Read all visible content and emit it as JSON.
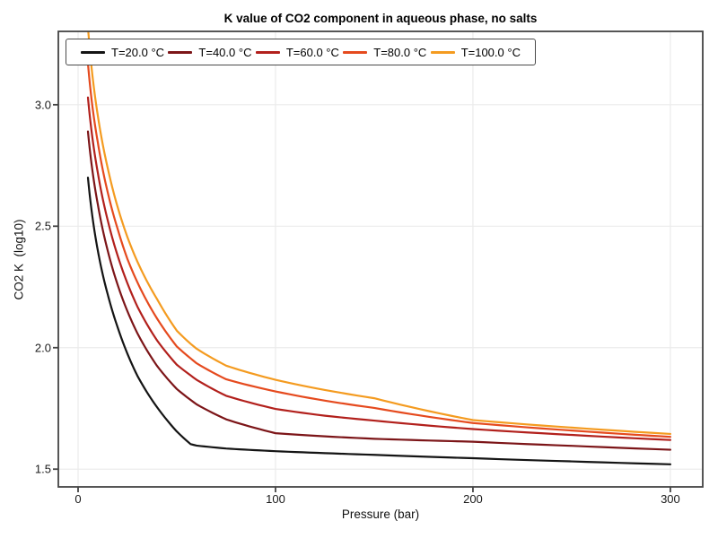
{
  "figure": {
    "title": "K value of CO2 component in aqueous phase, no salts",
    "xlabel": "Pressure (bar)",
    "ylabel": "CO2 K  (log10)"
  },
  "colors": {
    "background": "#ffffff",
    "spine": "#444444",
    "grid": "#ebebeb",
    "tick_text": "#1a1a1a"
  },
  "chart_data": {
    "type": "line",
    "title": "K value of CO2 component in aqueous phase, no salts",
    "xlabel": "Pressure (bar)",
    "ylabel": "CO2 K  (log10)",
    "xlim": [
      -10,
      316.4
    ],
    "ylim": [
      1.427,
      3.302
    ],
    "grid": true,
    "legend_position": "top-inside-horizontal",
    "xticks": [
      0,
      100,
      200,
      300
    ],
    "xtick_labels": [
      "0",
      "100",
      "200",
      "300"
    ],
    "yticks": [
      1.5,
      2.0,
      2.5,
      3.0
    ],
    "ytick_labels": [
      "1.5",
      "2.0",
      "2.5",
      "3.0"
    ],
    "x": [
      5,
      7,
      10,
      15,
      20,
      25,
      30,
      40,
      50,
      57,
      60,
      75,
      100,
      125,
      150,
      200,
      250,
      300
    ],
    "series": [
      {
        "name": "T=20.0 °C",
        "color": "#141414",
        "values": [
          2.7,
          2.555,
          2.4,
          2.22,
          2.085,
          1.975,
          1.885,
          1.755,
          1.655,
          1.603,
          1.597,
          1.585,
          1.574,
          1.566,
          1.559,
          1.545,
          1.532,
          1.52
        ]
      },
      {
        "name": "T=40.0 °C",
        "color": "#7c1518",
        "values": [
          2.89,
          2.745,
          2.59,
          2.4,
          2.26,
          2.15,
          2.06,
          1.925,
          1.83,
          1.785,
          1.767,
          1.705,
          1.648,
          1.635,
          1.625,
          1.613,
          1.596,
          1.58
        ]
      },
      {
        "name": "T=60.0 °C",
        "color": "#b2201c",
        "values": [
          3.03,
          2.88,
          2.72,
          2.525,
          2.38,
          2.265,
          2.17,
          2.03,
          1.93,
          1.886,
          1.868,
          1.802,
          1.748,
          1.72,
          1.7,
          1.665,
          1.641,
          1.62
        ]
      },
      {
        "name": "T=80.0 °C",
        "color": "#e54a1e",
        "values": [
          3.17,
          3.01,
          2.845,
          2.64,
          2.49,
          2.365,
          2.27,
          2.12,
          2.005,
          1.956,
          1.936,
          1.87,
          1.82,
          1.782,
          1.752,
          1.69,
          1.659,
          1.633
        ]
      },
      {
        "name": "T=100.0 °C",
        "color": "#f49b20",
        "values": [
          3.32,
          3.14,
          2.955,
          2.74,
          2.58,
          2.455,
          2.355,
          2.2,
          2.07,
          2.016,
          1.996,
          1.926,
          1.868,
          1.826,
          1.792,
          1.702,
          1.671,
          1.645
        ]
      }
    ]
  }
}
